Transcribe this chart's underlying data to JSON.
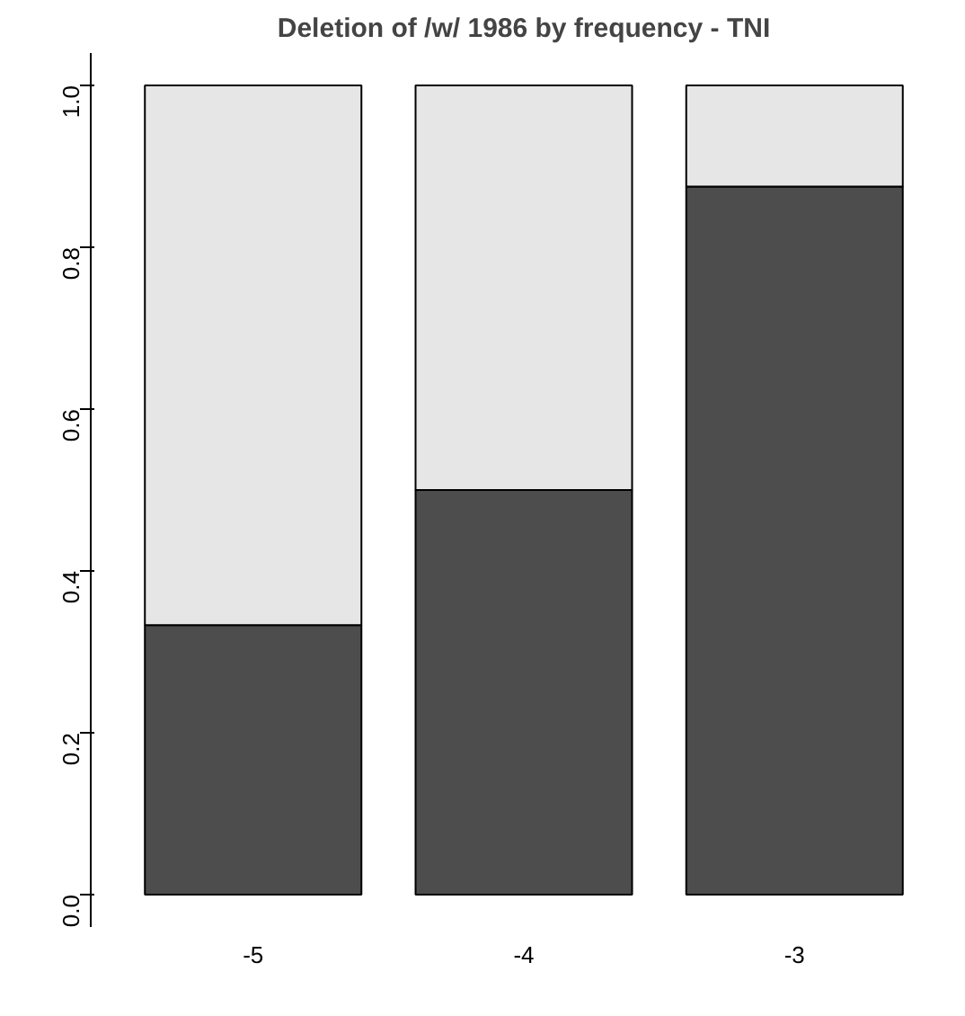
{
  "chart_data": {
    "type": "bar",
    "title": "Deletion of /w/ 1986 by frequency - TNI",
    "categories": [
      "-5",
      "-4",
      "-3"
    ],
    "stacked": true,
    "series": [
      {
        "color": "#4d4d4d",
        "values": [
          0.333,
          0.5,
          0.875
        ]
      },
      {
        "color": "#e6e6e6",
        "values": [
          0.667,
          0.5,
          0.125
        ]
      }
    ],
    "ylim": [
      -0.04,
      1.04
    ],
    "yticks": [
      {
        "value": 0,
        "label": "0.0"
      },
      {
        "value": 0.2,
        "label": "0.2"
      },
      {
        "value": 0.4,
        "label": "0.4"
      },
      {
        "value": 0.6,
        "label": "0.6"
      },
      {
        "value": 0.8,
        "label": "0.8"
      },
      {
        "value": 1,
        "label": "1.0"
      }
    ],
    "grid": false
  }
}
